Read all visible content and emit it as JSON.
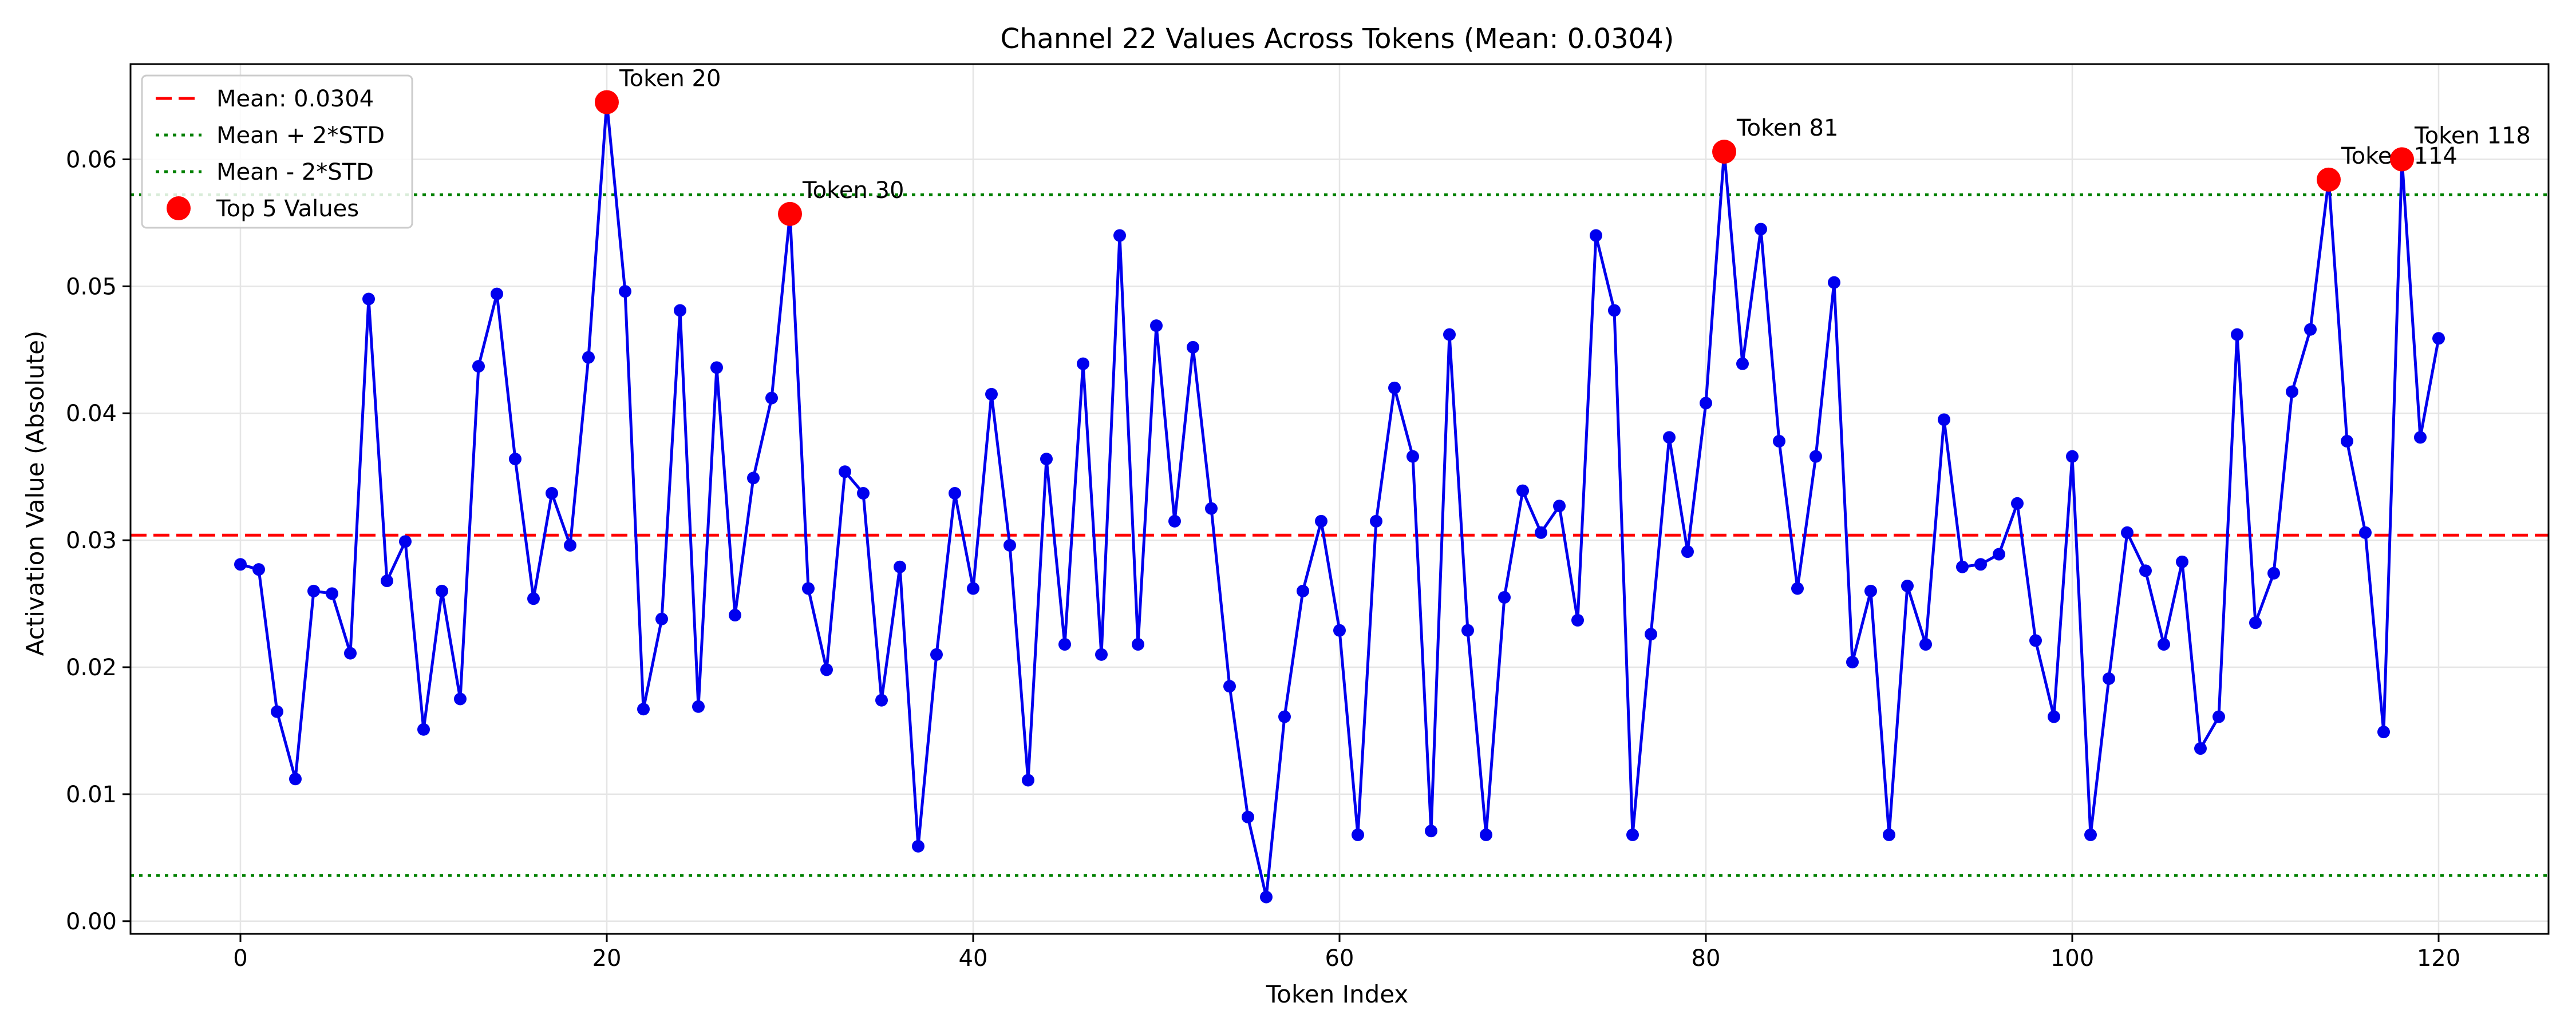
{
  "chart_data": {
    "type": "line",
    "title": "Channel 22 Values Across Tokens (Mean: 0.0304)",
    "xlabel": "Token Index",
    "ylabel": "Activation Value (Absolute)",
    "xlim": [
      -6,
      126
    ],
    "ylim": [
      -0.001,
      0.0675
    ],
    "xticks": [
      0,
      20,
      40,
      60,
      80,
      100,
      120
    ],
    "yticks": [
      0.0,
      0.01,
      0.02,
      0.03,
      0.04,
      0.05,
      0.06
    ],
    "ytick_labels": [
      "0.00",
      "0.01",
      "0.02",
      "0.03",
      "0.04",
      "0.05",
      "0.06"
    ],
    "grid": true,
    "legend_position": "top-left",
    "series": [
      {
        "name": "",
        "color": "#0000ee",
        "values": [
          0.0281,
          0.0277,
          0.0165,
          0.0112,
          0.026,
          0.0258,
          0.0211,
          0.049,
          0.0268,
          0.0299,
          0.0151,
          0.026,
          0.0175,
          0.0437,
          0.0494,
          0.0364,
          0.0254,
          0.0337,
          0.0296,
          0.0444,
          0.0645,
          0.0496,
          0.0167,
          0.0238,
          0.0481,
          0.0169,
          0.0436,
          0.0241,
          0.0349,
          0.0412,
          0.0557,
          0.0262,
          0.0198,
          0.0354,
          0.0337,
          0.0174,
          0.0279,
          0.0059,
          0.021,
          0.0337,
          0.0262,
          0.0415,
          0.0296,
          0.0111,
          0.0364,
          0.0218,
          0.0439,
          0.021,
          0.054,
          0.0218,
          0.0469,
          0.0315,
          0.0452,
          0.0325,
          0.0185,
          0.0082,
          0.0019,
          0.0161,
          0.026,
          0.0315,
          0.0229,
          0.0068,
          0.0315,
          0.042,
          0.0366,
          0.0071,
          0.0462,
          0.0229,
          0.0068,
          0.0255,
          0.0339,
          0.0306,
          0.0327,
          0.0237,
          0.054,
          0.0481,
          0.0068,
          0.0226,
          0.0381,
          0.0291,
          0.0408,
          0.0606,
          0.0439,
          0.0545,
          0.0378,
          0.0262,
          0.0366,
          0.0503,
          0.0204,
          0.026,
          0.0068,
          0.0264,
          0.0218,
          0.0395,
          0.0279,
          0.0281,
          0.0289,
          0.0329,
          0.0221,
          0.0161,
          0.0366,
          0.0068,
          0.0191,
          0.0306,
          0.0276,
          0.0218,
          0.0283,
          0.0136,
          0.0161,
          0.0462,
          0.0235,
          0.0274,
          0.0417,
          0.0466,
          0.0584,
          0.0378,
          0.0306,
          0.0149,
          0.06,
          0.0381,
          0.0459
        ]
      }
    ],
    "reference_lines": [
      {
        "label": "Mean: 0.0304",
        "value": 0.0304,
        "color": "#ff0000",
        "style": "dashed"
      },
      {
        "label": "Mean + 2*STD",
        "value": 0.0572,
        "color": "#008000",
        "style": "dotted"
      },
      {
        "label": "Mean - 2*STD",
        "value": 0.0036,
        "color": "#008000",
        "style": "dotted"
      }
    ],
    "highlights": {
      "label": "Top 5 Values",
      "color": "#ff0000",
      "points": [
        {
          "x": 20,
          "label": "Token 20"
        },
        {
          "x": 30,
          "label": "Token 30"
        },
        {
          "x": 81,
          "label": "Token 81"
        },
        {
          "x": 114,
          "label": "Token 114"
        },
        {
          "x": 118,
          "label": "Token 118"
        }
      ]
    }
  }
}
